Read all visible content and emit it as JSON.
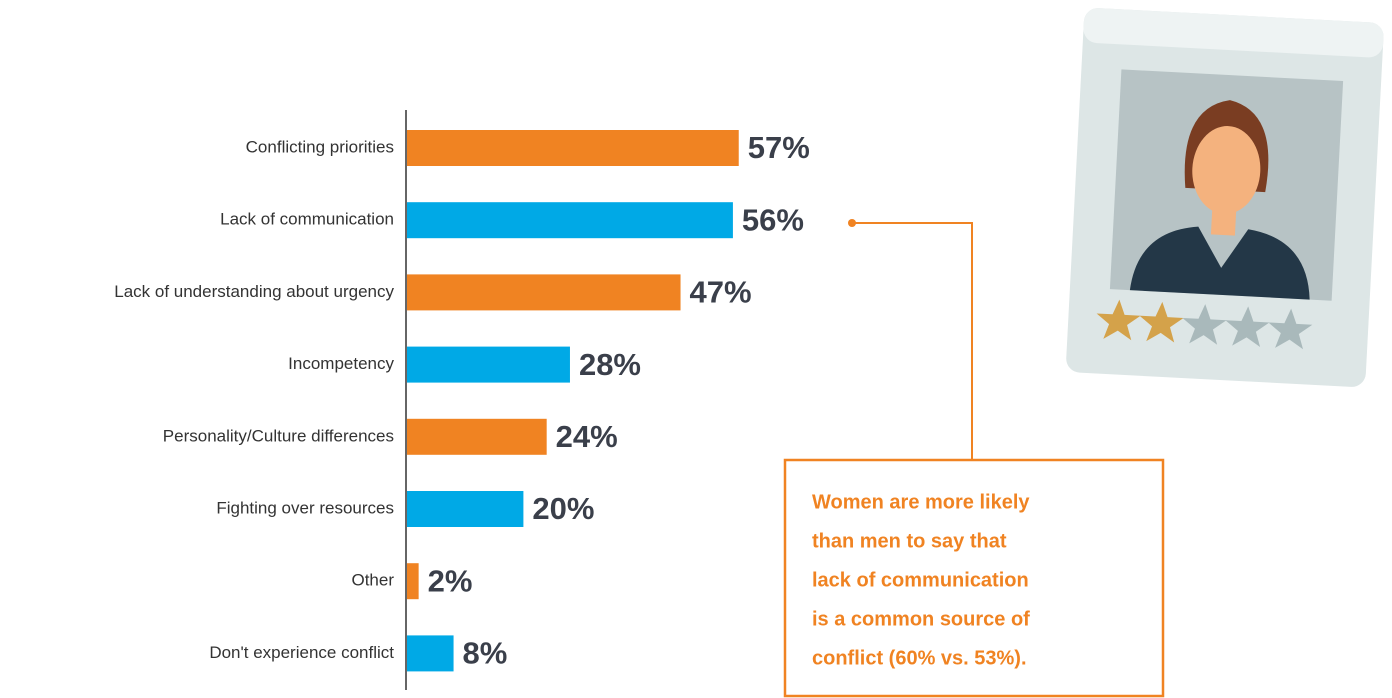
{
  "chart_data": {
    "type": "bar",
    "categories": [
      "Conflicting priorities",
      "Lack of communication",
      "Lack of understanding about urgency",
      "Incompetency",
      "Personality/Culture differences",
      "Fighting over resources",
      "Other",
      "Don't experience conflict"
    ],
    "values": [
      57,
      56,
      47,
      28,
      24,
      20,
      2,
      8
    ],
    "value_labels": [
      "57%",
      "56%",
      "47%",
      "28%",
      "24%",
      "20%",
      "2%",
      "8%"
    ],
    "colors": [
      "#f08322",
      "#00a9e6",
      "#f08322",
      "#00a9e6",
      "#f08322",
      "#00a9e6",
      "#f08322",
      "#00a9e6"
    ],
    "annotation": [
      "Women are more likely",
      "than men to say that",
      "lack of communication",
      "is a common source of",
      "conflict (60% vs. 53%)."
    ],
    "annotation_color": "#f08322"
  }
}
